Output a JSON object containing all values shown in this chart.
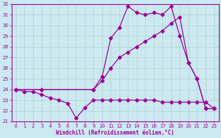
{
  "xlabel": "Windchill (Refroidissement éolien,°C)",
  "bg_color": "#cce8f0",
  "grid_color": "#aad4cc",
  "line_color": "#990099",
  "xlim": [
    -0.5,
    23.5
  ],
  "ylim": [
    21,
    32
  ],
  "xticks": [
    0,
    1,
    2,
    3,
    4,
    5,
    6,
    7,
    8,
    9,
    10,
    11,
    12,
    13,
    14,
    15,
    16,
    17,
    18,
    19,
    20,
    21,
    22,
    23
  ],
  "yticks": [
    21,
    22,
    23,
    24,
    25,
    26,
    27,
    28,
    29,
    30,
    31,
    32
  ],
  "line_top_x": [
    0,
    3,
    9,
    10,
    11,
    12,
    13,
    14,
    15,
    16,
    17,
    18,
    19,
    20,
    21,
    22,
    23
  ],
  "line_top_y": [
    24.0,
    24.0,
    24.0,
    25.2,
    28.8,
    29.8,
    31.8,
    31.2,
    31.0,
    31.2,
    31.0,
    31.8,
    29.0,
    26.5,
    25.0,
    22.2,
    22.2
  ],
  "line_mid_x": [
    0,
    3,
    9,
    10,
    11,
    12,
    13,
    14,
    15,
    16,
    17,
    18,
    19,
    20,
    21,
    22,
    23
  ],
  "line_mid_y": [
    24.0,
    24.0,
    24.0,
    24.8,
    26.0,
    27.0,
    27.5,
    28.0,
    28.5,
    29.0,
    29.5,
    30.2,
    30.8,
    26.5,
    25.0,
    22.2,
    22.2
  ],
  "line_bot_x": [
    0,
    1,
    2,
    3,
    4,
    5,
    6,
    7,
    8,
    9,
    10,
    11,
    12,
    13,
    14,
    15,
    16,
    17,
    18,
    19,
    20,
    21,
    22,
    23
  ],
  "line_bot_y": [
    24.0,
    23.8,
    23.8,
    23.5,
    23.2,
    23.0,
    22.7,
    21.3,
    22.3,
    23.0,
    23.0,
    23.0,
    23.0,
    23.0,
    23.0,
    23.0,
    23.0,
    22.8,
    22.8,
    22.8,
    22.8,
    22.8,
    22.8,
    22.2
  ]
}
